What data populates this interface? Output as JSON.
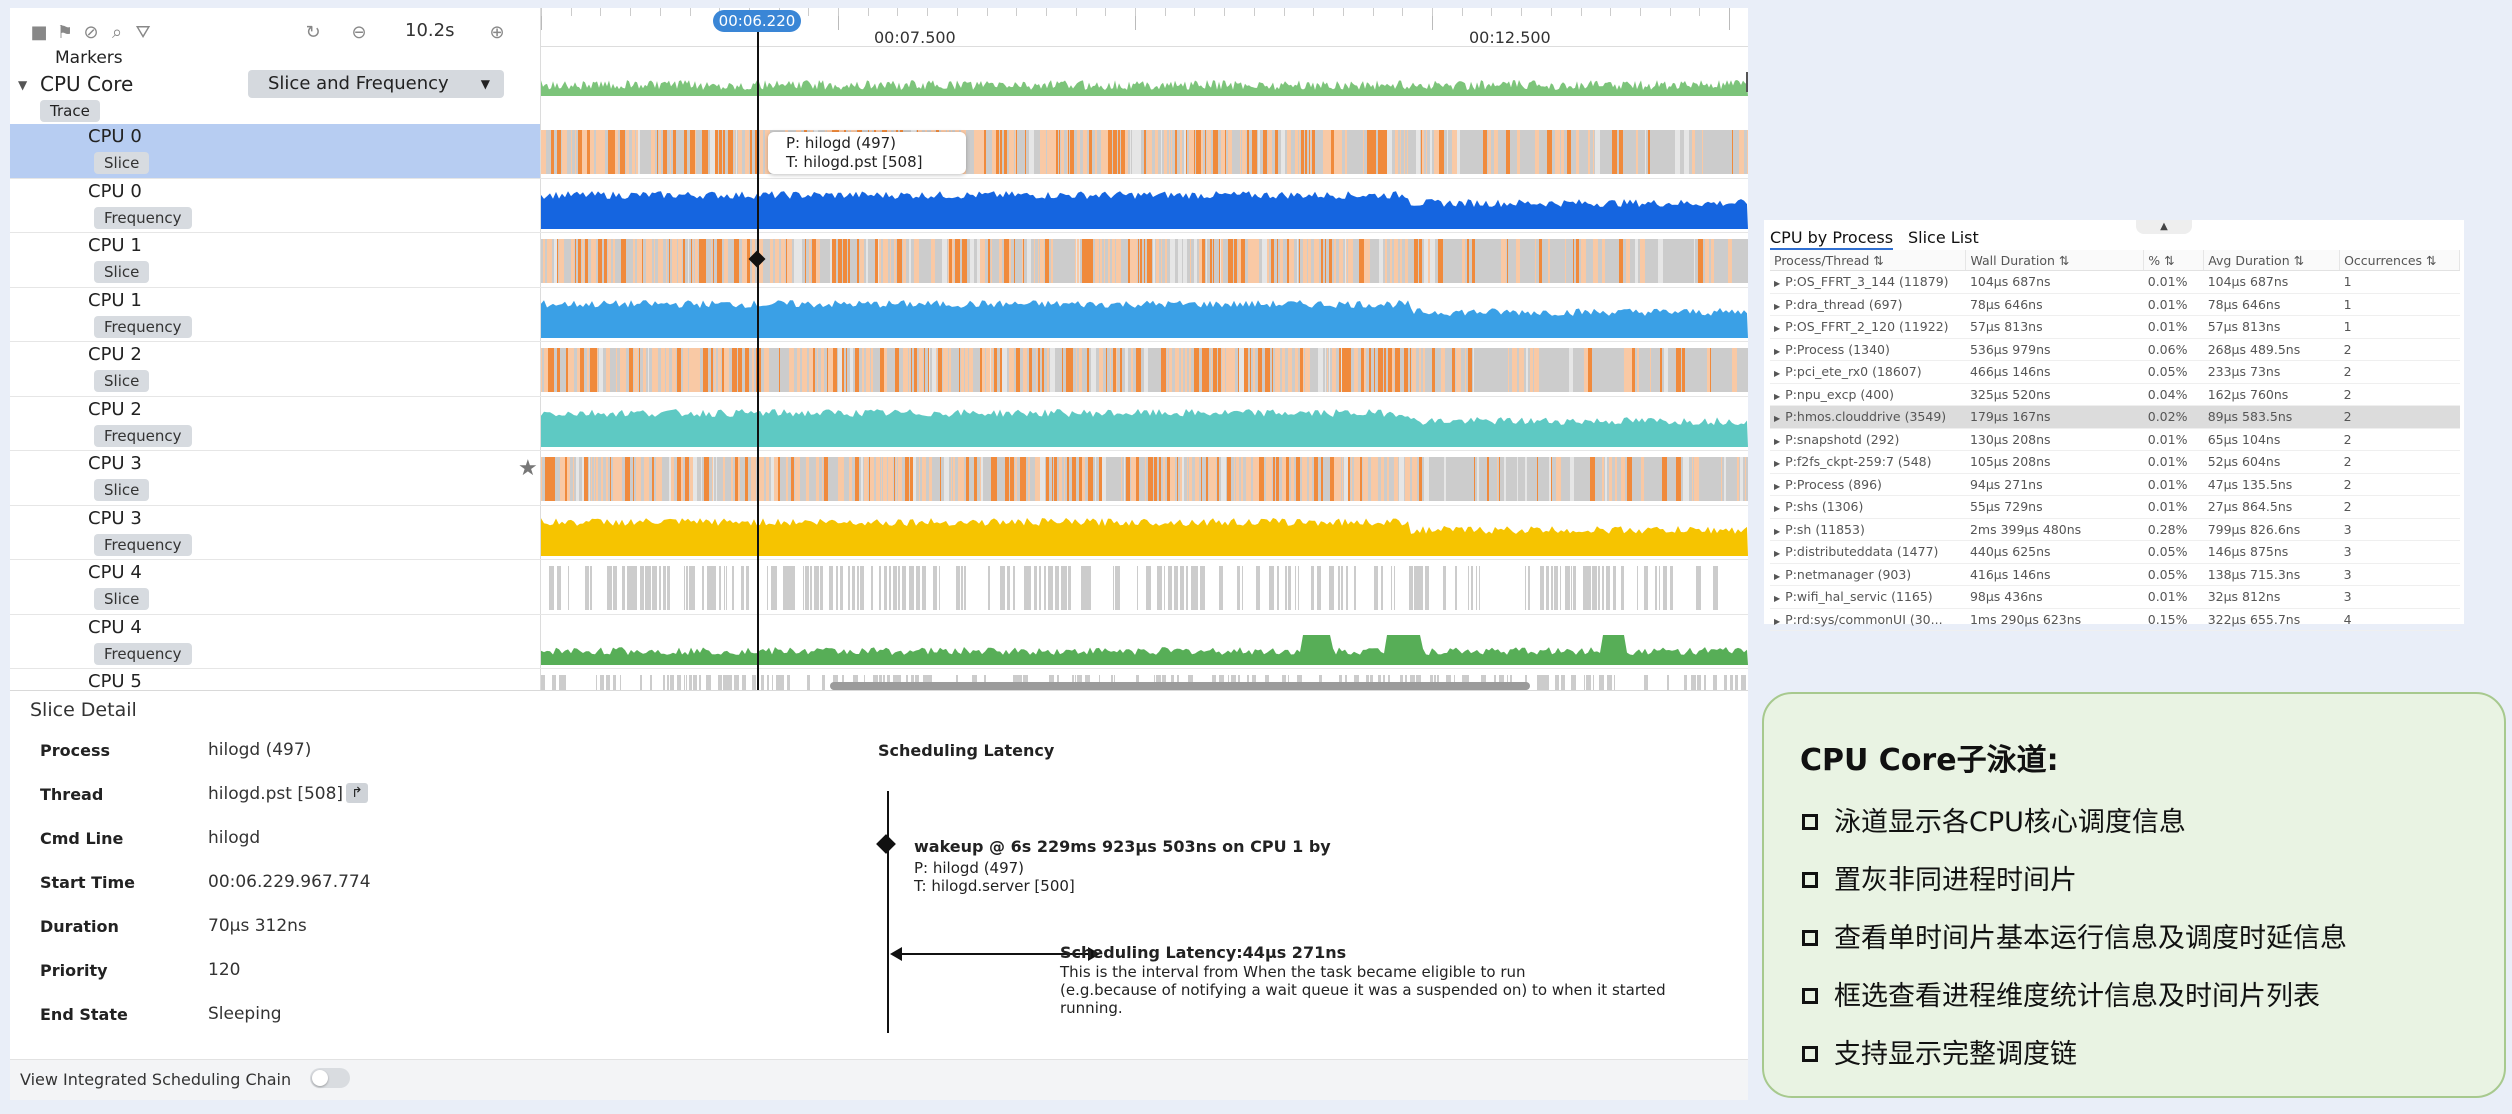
{
  "toolbar": {
    "zoom_label": "10.2s",
    "icons": [
      "square-icon",
      "flag-icon",
      "no-entry-icon",
      "search-icon",
      "filter-icon",
      "reset-icon",
      "zoom-out-icon",
      "zoom-in-icon"
    ]
  },
  "timeline": {
    "cursor_time": "00:06.220",
    "ticks": [
      "00:07.500",
      "00:12.500"
    ]
  },
  "trace": {
    "markers_label": "Markers",
    "group_label": "CPU Core",
    "mode_select": "Slice and Frequency",
    "trace_tag": "Trace",
    "lanes": [
      {
        "cpu": "CPU 0",
        "tag": "Slice",
        "kind": "slice",
        "selected": true
      },
      {
        "cpu": "CPU 0",
        "tag": "Frequency",
        "kind": "freq",
        "color": "#1565e0"
      },
      {
        "cpu": "CPU 1",
        "tag": "Slice",
        "kind": "slice"
      },
      {
        "cpu": "CPU 1",
        "tag": "Frequency",
        "kind": "freq",
        "color": "#3aa0e6"
      },
      {
        "cpu": "CPU 2",
        "tag": "Slice",
        "kind": "slice"
      },
      {
        "cpu": "CPU 2",
        "tag": "Frequency",
        "kind": "freq",
        "color": "#5ec9c3"
      },
      {
        "cpu": "CPU 3",
        "tag": "Slice",
        "kind": "slice"
      },
      {
        "cpu": "CPU 3",
        "tag": "Frequency",
        "kind": "freq",
        "color": "#f6c400"
      },
      {
        "cpu": "CPU 4",
        "tag": "Slice",
        "kind": "slice-gray"
      },
      {
        "cpu": "CPU 4",
        "tag": "Frequency",
        "kind": "freq-low",
        "color": "#57ae57"
      },
      {
        "cpu": "CPU 5",
        "tag": "",
        "kind": "slice-gray"
      }
    ],
    "tooltip": {
      "process_line": "P:  hilogd (497)",
      "thread_line": "T:  hilogd.pst [508]"
    }
  },
  "slice_detail": {
    "title": "Slice Detail",
    "fields": [
      {
        "key": "Process",
        "value": "hilogd (497)"
      },
      {
        "key": "Thread",
        "value": "hilogd.pst [508]"
      },
      {
        "key": "Cmd Line",
        "value": "hilogd"
      },
      {
        "key": "Start Time",
        "value": "00:06.229.967.774"
      },
      {
        "key": "Duration",
        "value": "70μs 312ns"
      },
      {
        "key": "Priority",
        "value": "120"
      },
      {
        "key": "End State",
        "value": "Sleeping"
      }
    ],
    "scheduling": {
      "title": "Scheduling Latency",
      "wakeup": "wakeup @ 6s 229ms 923μs 503ns on CPU 1 by",
      "wakeup_process": "P: hilogd (497)",
      "wakeup_thread": "T: hilogd.server [500]",
      "latency_title": "Scheduling Latency:44μs 271ns",
      "latency_desc": [
        "This is the interval from When the task became eligible to run",
        "(e.g.because of notifying a wait queue it was a suspended on) to when it started",
        "running."
      ]
    },
    "chain_toggle_label": "View Integrated Scheduling Chain"
  },
  "stats": {
    "tabs": [
      "CPU by Process",
      "Slice List"
    ],
    "columns": [
      "Process/Thread ⇅",
      "Wall Duration ⇅",
      "% ⇅",
      "Avg Duration ⇅",
      "Occurrences ⇅"
    ],
    "rows": [
      [
        "P:OS_FFRT_3_144 (11879)",
        "104μs 687ns",
        "0.01%",
        "104μs 687ns",
        "1"
      ],
      [
        "P:dra_thread (697)",
        "78μs 646ns",
        "0.01%",
        "78μs 646ns",
        "1"
      ],
      [
        "P:OS_FFRT_2_120 (11922)",
        "57μs 813ns",
        "0.01%",
        "57μs 813ns",
        "1"
      ],
      [
        "P:Process (1340)",
        "536μs 979ns",
        "0.06%",
        "268μs 489.5ns",
        "2"
      ],
      [
        "P:pci_ete_rx0 (18607)",
        "466μs 146ns",
        "0.05%",
        "233μs 73ns",
        "2"
      ],
      [
        "P:npu_excp (400)",
        "325μs 520ns",
        "0.04%",
        "162μs 760ns",
        "2"
      ],
      [
        "P:hmos.clouddrive (3549)",
        "179μs 167ns",
        "0.02%",
        "89μs 583.5ns",
        "2"
      ],
      [
        "P:snapshotd (292)",
        "130μs 208ns",
        "0.01%",
        "65μs 104ns",
        "2"
      ],
      [
        "P:f2fs_ckpt-259:7 (548)",
        "105μs 208ns",
        "0.01%",
        "52μs 604ns",
        "2"
      ],
      [
        "P:Process (896)",
        "94μs 271ns",
        "0.01%",
        "47μs 135.5ns",
        "2"
      ],
      [
        "P:shs (1306)",
        "55μs 729ns",
        "0.01%",
        "27μs 864.5ns",
        "2"
      ],
      [
        "P:sh (11853)",
        "2ms 399μs 480ns",
        "0.28%",
        "799μs 826.6ns",
        "3"
      ],
      [
        "P:distributeddata (1477)",
        "440μs 625ns",
        "0.05%",
        "146μs 875ns",
        "3"
      ],
      [
        "P:netmanager (903)",
        "416μs 146ns",
        "0.05%",
        "138μs 715.3ns",
        "3"
      ],
      [
        "P:wifi_hal_servic (1165)",
        "98μs 436ns",
        "0.01%",
        "32μs 812ns",
        "3"
      ],
      [
        "P:rd:sys/commonUI (30...",
        "1ms 290μs 623ns",
        "0.15%",
        "322μs 655.7ns",
        "4"
      ]
    ],
    "highlighted_row": 6
  },
  "callout": {
    "title": "CPU Core子泳道:",
    "items": [
      "泳道显示各CPU核心调度信息",
      "置灰非同进程时间片",
      "查看单时间片基本运行信息及调度时延信息",
      "框选查看进程维度统计信息及时间片列表",
      "支持显示完整调度链"
    ]
  },
  "colors": {
    "slice_orange": "#f08a3c",
    "slice_light_orange": "#f9c9a5",
    "slice_gray": "#cccccc",
    "selection": "#b7cdf2",
    "accent_blue": "#3a86d6",
    "callout_bg": "#e9f3e3",
    "callout_border": "#a7c98e"
  }
}
